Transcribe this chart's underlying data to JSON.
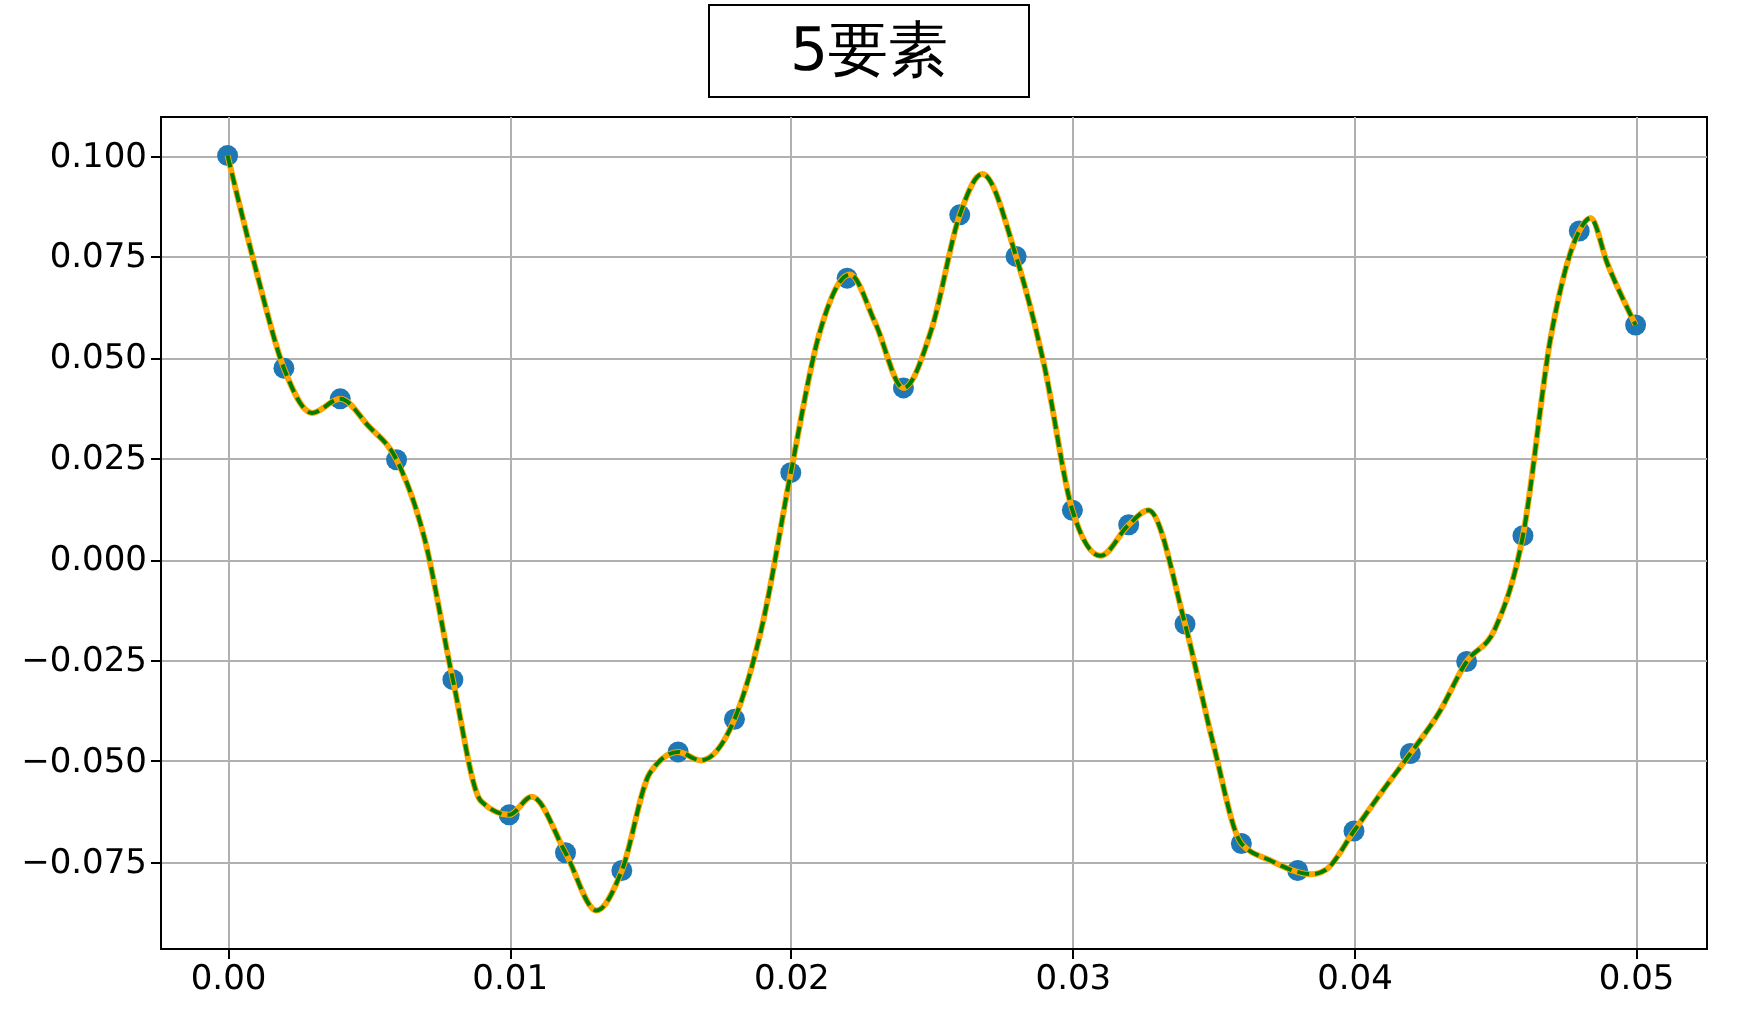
{
  "chart_data": {
    "type": "line",
    "title": "5要素",
    "grid": true,
    "xlim": [
      -0.0024,
      0.0525
    ],
    "ylim": [
      -0.0964,
      0.1098
    ],
    "xticks": [
      {
        "value": 0,
        "label": "0.00"
      },
      {
        "value": 0.01,
        "label": "0.01"
      },
      {
        "value": 0.02,
        "label": "0.02"
      },
      {
        "value": 0.03,
        "label": "0.03"
      },
      {
        "value": 0.04,
        "label": "0.04"
      },
      {
        "value": 0.05,
        "label": "0.05"
      }
    ],
    "yticks": [
      {
        "value": -0.075,
        "label": "−0.075"
      },
      {
        "value": -0.05,
        "label": "−0.050"
      },
      {
        "value": -0.025,
        "label": "−0.025"
      },
      {
        "value": 0,
        "label": "0.000"
      },
      {
        "value": 0.025,
        "label": "0.025"
      },
      {
        "value": 0.05,
        "label": "0.050"
      },
      {
        "value": 0.075,
        "label": "0.075"
      },
      {
        "value": 0.1,
        "label": "0.100"
      }
    ],
    "series": [
      {
        "color": "#ffa500",
        "line_style": "solid",
        "marker": "none",
        "x": [
          0,
          0.001,
          0.002,
          0.003,
          0.004,
          0.005,
          0.006,
          0.007,
          0.008,
          0.009,
          0.01,
          0.0108,
          0.012,
          0.0131,
          0.014,
          0.015,
          0.016,
          0.0168,
          0.018,
          0.019,
          0.02,
          0.021,
          0.0221,
          0.023,
          0.024,
          0.025,
          0.026,
          0.0268,
          0.028,
          0.029,
          0.03,
          0.031,
          0.032,
          0.0327,
          0.034,
          0.035,
          0.036,
          0.037,
          0.0385,
          0.039,
          0.04,
          0.041,
          0.042,
          0.043,
          0.044,
          0.045,
          0.046,
          0.047,
          0.048,
          0.0484,
          0.049,
          0.05
        ],
        "values": [
          0.1,
          0.0719,
          0.0473,
          0.0362,
          0.0397,
          0.033,
          0.0246,
          0.0049,
          -0.0299,
          -0.06,
          -0.0634,
          -0.0589,
          -0.0728,
          -0.0871,
          -0.0772,
          -0.053,
          -0.0478,
          -0.0499,
          -0.0397,
          -0.016,
          0.0214,
          0.0555,
          0.0705,
          0.0585,
          0.0424,
          0.057,
          0.0853,
          0.0954,
          0.075,
          0.048,
          0.0121,
          0.0008,
          0.0085,
          0.0121,
          -0.0161,
          -0.0457,
          -0.0705,
          -0.0746,
          -0.0781,
          -0.077,
          -0.0674,
          -0.0576,
          -0.0482,
          -0.0383,
          -0.0254,
          -0.0174,
          0.0058,
          0.0555,
          0.0813,
          0.0845,
          0.0732,
          0.058
        ]
      },
      {
        "color": "#008000",
        "line_style": "dashed",
        "marker": "none",
        "x": [
          0,
          0.001,
          0.002,
          0.003,
          0.004,
          0.005,
          0.006,
          0.007,
          0.008,
          0.009,
          0.01,
          0.0108,
          0.012,
          0.0131,
          0.014,
          0.015,
          0.016,
          0.0168,
          0.018,
          0.019,
          0.02,
          0.021,
          0.0221,
          0.023,
          0.024,
          0.025,
          0.026,
          0.0268,
          0.028,
          0.029,
          0.03,
          0.031,
          0.032,
          0.0327,
          0.034,
          0.035,
          0.036,
          0.037,
          0.0385,
          0.039,
          0.04,
          0.041,
          0.042,
          0.043,
          0.044,
          0.045,
          0.046,
          0.047,
          0.048,
          0.0484,
          0.049,
          0.05
        ],
        "values": [
          0.1,
          0.0719,
          0.0473,
          0.0362,
          0.0397,
          0.033,
          0.0246,
          0.0049,
          -0.0299,
          -0.06,
          -0.0634,
          -0.0589,
          -0.0728,
          -0.0871,
          -0.0772,
          -0.053,
          -0.0478,
          -0.0499,
          -0.0397,
          -0.016,
          0.0214,
          0.0555,
          0.0705,
          0.0585,
          0.0424,
          0.057,
          0.0853,
          0.0954,
          0.075,
          0.048,
          0.0121,
          0.0008,
          0.0085,
          0.0121,
          -0.0161,
          -0.0457,
          -0.0705,
          -0.0746,
          -0.0781,
          -0.077,
          -0.0674,
          -0.0576,
          -0.0482,
          -0.0383,
          -0.0254,
          -0.0174,
          0.0058,
          0.0555,
          0.0813,
          0.0845,
          0.0732,
          0.058
        ]
      },
      {
        "type": "scatter",
        "color": "#1f77b4",
        "marker": "circle",
        "x": [
          0,
          0.002,
          0.004,
          0.006,
          0.008,
          0.01,
          0.012,
          0.014,
          0.016,
          0.018,
          0.02,
          0.022,
          0.024,
          0.026,
          0.028,
          0.03,
          0.032,
          0.034,
          0.036,
          0.038,
          0.04,
          0.042,
          0.044,
          0.046,
          0.048,
          0.05
        ],
        "values": [
          0.1,
          0.0473,
          0.0397,
          0.0246,
          -0.0299,
          -0.0634,
          -0.0728,
          -0.0772,
          -0.0478,
          -0.0397,
          0.0214,
          0.0696,
          0.0424,
          0.0853,
          0.075,
          0.0121,
          0.0085,
          -0.0161,
          -0.0705,
          -0.0772,
          -0.0674,
          -0.0482,
          -0.0254,
          0.0058,
          0.0813,
          0.058
        ]
      }
    ]
  }
}
